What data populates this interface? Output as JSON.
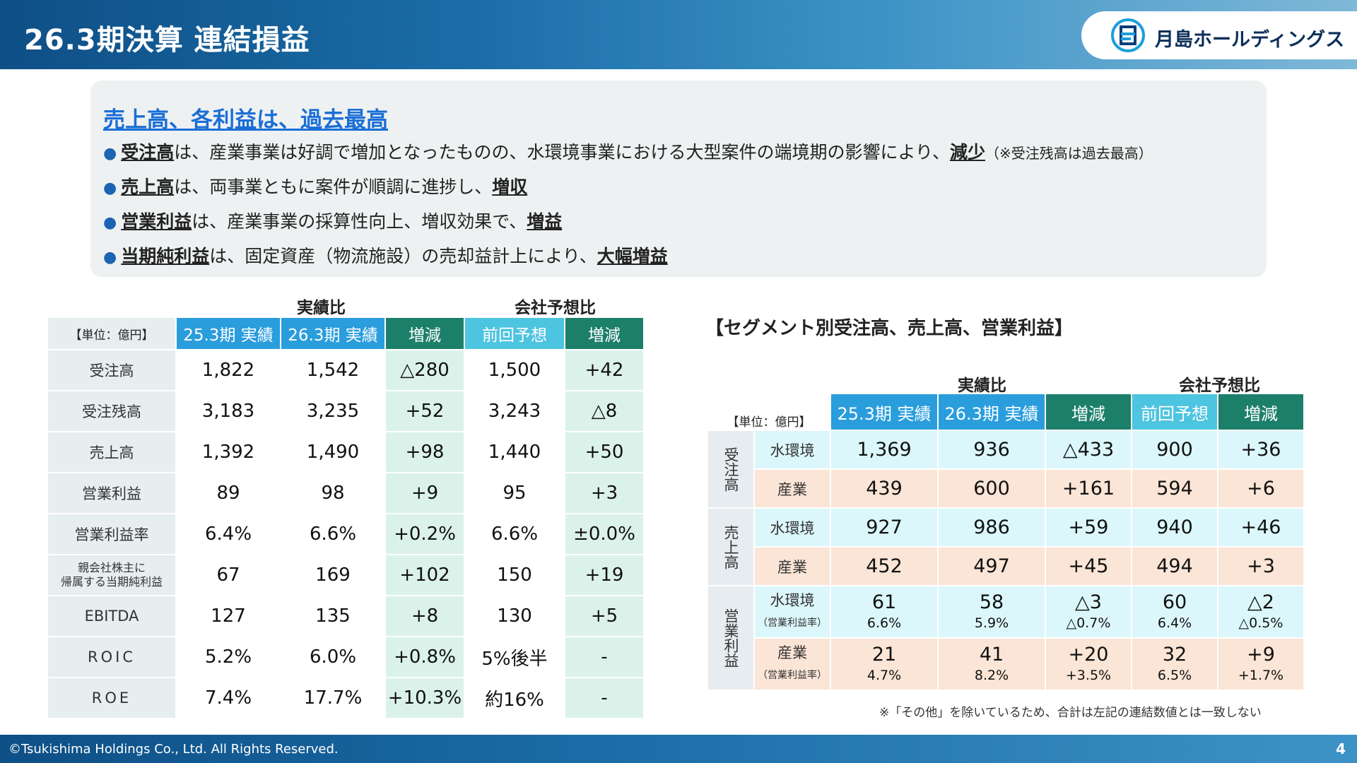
{
  "header": {
    "title": "26.3期決算 連結損益",
    "logo_text": "月島ホールディングス"
  },
  "summary": {
    "heading": "売上高、各利益は、過去最高",
    "bullets": [
      {
        "u1": "受注高",
        "t1": "は、産業事業は好調で増加となったものの、水環境事業における大型案件の端境期の影響により、",
        "u2": "減少",
        "small": "（※受注残高は過去最高）"
      },
      {
        "u1": "売上高",
        "t1": "は、両事業ともに案件が順調に進捗し、",
        "u2": "増収",
        "small": ""
      },
      {
        "u1": "営業利益",
        "t1": "は、産業事業の採算性向上、増収効果で、",
        "u2": "増益",
        "small": ""
      },
      {
        "u1": "当期純利益",
        "t1": "は、固定資産（物流施設）の売却益計上により、",
        "u2": "大幅増益",
        "small": ""
      }
    ]
  },
  "left_table": {
    "group_actual": "実績比",
    "group_forecast": "会社予想比",
    "unit": "【単位：億円】",
    "headers": [
      "25.3期 実績",
      "26.3期 実績",
      "増減",
      "前回予想",
      "増減"
    ],
    "rows": [
      {
        "label": "受注高",
        "values": [
          "1,822",
          "1,542",
          "△280",
          "1,500",
          "+42"
        ]
      },
      {
        "label": "受注残高",
        "values": [
          "3,183",
          "3,235",
          "+52",
          "3,243",
          "△8"
        ]
      },
      {
        "label": "売上高",
        "values": [
          "1,392",
          "1,490",
          "+98",
          "1,440",
          "+50"
        ]
      },
      {
        "label": "営業利益",
        "values": [
          "89",
          "98",
          "+9",
          "95",
          "+3"
        ]
      },
      {
        "label": "営業利益率",
        "values": [
          "6.4%",
          "6.6%",
          "+0.2%",
          "6.6%",
          "±0.0%"
        ]
      },
      {
        "label1": "親会社株主に",
        "label2": "帰属する当期純利益",
        "values": [
          "67",
          "169",
          "+102",
          "150",
          "+19"
        ]
      },
      {
        "label": "EBITDA",
        "values": [
          "127",
          "135",
          "+8",
          "130",
          "+5"
        ]
      },
      {
        "label": "ROIC",
        "values": [
          "5.2%",
          "6.0%",
          "+0.8%",
          "5%後半",
          "-"
        ]
      },
      {
        "label": "ROE",
        "values": [
          "7.4%",
          "17.7%",
          "+10.3%",
          "約16%",
          "-"
        ]
      }
    ]
  },
  "segment": {
    "title": "【セグメント別受注高、売上高、営業利益】",
    "group_actual": "実績比",
    "group_forecast": "会社予想比",
    "unit": "【単位：億円】",
    "headers": [
      "25.3期 実績",
      "26.3期 実績",
      "増減",
      "前回予想",
      "増減"
    ],
    "groups": [
      {
        "label": "受注高",
        "rows": [
          {
            "seg": "水環境",
            "values": [
              "1,369",
              "936",
              "△433",
              "900",
              "+36"
            ]
          },
          {
            "seg": "産業",
            "values": [
              "439",
              "600",
              "+161",
              "594",
              "+6"
            ]
          }
        ]
      },
      {
        "label": "売上高",
        "rows": [
          {
            "seg": "水環境",
            "values": [
              "927",
              "986",
              "+59",
              "940",
              "+46"
            ]
          },
          {
            "seg": "産業",
            "values": [
              "452",
              "497",
              "+45",
              "494",
              "+3"
            ]
          }
        ]
      },
      {
        "label": "営業利益",
        "rows": [
          {
            "seg": "水環境",
            "sub": "（営業利益率）",
            "values": [
              "61",
              "58",
              "△3",
              "60",
              "△2"
            ],
            "rates": [
              "6.6%",
              "5.9%",
              "△0.7%",
              "6.4%",
              "△0.5%"
            ]
          },
          {
            "seg": "産業",
            "sub": "（営業利益率）",
            "values": [
              "21",
              "41",
              "+20",
              "32",
              "+9"
            ],
            "rates": [
              "4.7%",
              "8.2%",
              "+3.5%",
              "6.5%",
              "+1.7%"
            ]
          }
        ]
      }
    ],
    "note": "※「その他」を除いているため、合計は左記の連結数値とは一致しない"
  },
  "footer": {
    "copyright": "©Tsukishima Holdings Co., Ltd. All Rights Reserved.",
    "page": "4"
  },
  "colors": {
    "header_blue": "#2a9ddd",
    "header_teal": "#1c7f6a",
    "header_cyan": "#4dc4e0",
    "water_row": "#dcf7fb",
    "industry_row": "#fbe5d6"
  }
}
